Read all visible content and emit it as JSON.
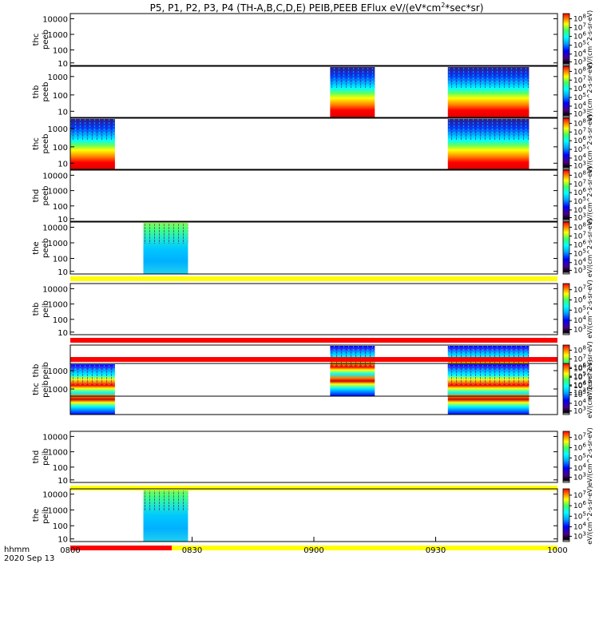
{
  "title": "P5, P1, P2, P3, P4 (TH-A,B,C,D,E) PEIB,PEEB EFlux eV/(eV*cm^2*sec*sr)",
  "title_parts": {
    "before": "P5, P1, P2, P3, P4 (TH-A,B,C,D,E) PEIB,PEEB EFlux eV/(eV*cm",
    "sup": "2",
    "after": "*sec*sr)"
  },
  "colors": {
    "axis": "#000000",
    "flag_yellow": "#ffff00",
    "flag_red": "#ff0000",
    "colormap": [
      "#4b0082",
      "#0000ff",
      "#0080ff",
      "#00ffff",
      "#40ff80",
      "#ffff00",
      "#ff8000",
      "#ff0000"
    ]
  },
  "colorbar_unit_label": "eV/(cm^2-s-sr-eV)",
  "bottom_colorbar_label": "[eV/(cm2-s-sr-eV)]",
  "time_axis": {
    "label_1": "hhmm",
    "label_2": "2020 Sep 13",
    "ticks": [
      "0800",
      "0830",
      "0900",
      "0930",
      "1000"
    ]
  },
  "chart_data": {
    "type": "heatmap",
    "x_range_minutes": [
      0,
      120
    ],
    "panels": [
      {
        "id": "thc-peeb-top",
        "label_1": "thc",
        "label_2": "peeb",
        "yticks": [
          "10000",
          "1000",
          "100",
          "10"
        ],
        "cbar_ticks": [
          "10^8",
          "10^7",
          "10^6",
          "10^5",
          "10^4",
          "10^3"
        ],
        "blocks": []
      },
      {
        "id": "thb-peeb",
        "label_1": "thb",
        "label_2": "peeb",
        "yticks": [
          "1000",
          "100",
          "10"
        ],
        "cbar_ticks": [
          "10^8",
          "10^7",
          "10^6",
          "10^5",
          "10^4",
          "10^3"
        ],
        "blocks": [
          {
            "start_min": 64,
            "end_min": 75,
            "style": "electron"
          },
          {
            "start_min": 93,
            "end_min": 113,
            "style": "electron"
          }
        ]
      },
      {
        "id": "thc-peeb",
        "label_1": "thc",
        "label_2": "peeb",
        "yticks": [
          "1000",
          "100",
          "10"
        ],
        "cbar_ticks": [
          "10^8",
          "10^7",
          "10^6",
          "10^5",
          "10^4",
          "10^3"
        ],
        "blocks": [
          {
            "start_min": 0,
            "end_min": 11,
            "style": "electron"
          },
          {
            "start_min": 93,
            "end_min": 113,
            "style": "electron"
          }
        ]
      },
      {
        "id": "thd-peeb",
        "label_1": "thd",
        "label_2": "peeb",
        "yticks": [
          "10000",
          "1000",
          "100",
          "10"
        ],
        "cbar_ticks": [
          "10^8",
          "10^7",
          "10^6",
          "10^5",
          "10^4",
          "10^3"
        ],
        "blocks": []
      },
      {
        "id": "the-peeb",
        "label_1": "the",
        "label_2": "peeb",
        "yticks": [
          "10000",
          "1000",
          "100",
          "10"
        ],
        "cbar_ticks": [
          "10^8",
          "10^7",
          "10^6",
          "10^5",
          "10^4",
          "10^3"
        ],
        "blocks": [
          {
            "start_min": 18,
            "end_min": 29,
            "style": "low"
          }
        ]
      },
      {
        "id": "thb-peib-top",
        "label_1": "thb",
        "label_2": "peib",
        "yticks": [
          "10000",
          "1000",
          "100",
          "10"
        ],
        "cbar_ticks": [
          "10^7",
          "10^6",
          "10^5",
          "10^4",
          "10^3"
        ],
        "blocks": []
      },
      {
        "id": "thb-peib",
        "label_1": "thb",
        "label_2": "peib",
        "yticks": [
          "1000"
        ],
        "cbar_ticks": [
          "10^8",
          "10^7",
          "10^6",
          "10^5",
          "10^4",
          "10^3"
        ],
        "blocks": [
          {
            "start_min": 64,
            "end_min": 75,
            "style": "ion"
          },
          {
            "start_min": 93,
            "end_min": 113,
            "style": "ion"
          }
        ]
      },
      {
        "id": "thc-peib",
        "label_1": "thc",
        "label_2": "peib",
        "yticks": [
          "1000"
        ],
        "cbar_ticks": [
          "10^8",
          "10^7",
          "10^6",
          "10^5",
          "10^4",
          "10^3"
        ],
        "blocks": [
          {
            "start_min": 0,
            "end_min": 11,
            "style": "ion"
          },
          {
            "start_min": 93,
            "end_min": 113,
            "style": "ion"
          }
        ]
      },
      {
        "id": "thd-peib",
        "label_1": "thd",
        "label_2": "peib",
        "yticks": [
          "10000",
          "1000",
          "100",
          "10"
        ],
        "cbar_ticks": [
          "10^7",
          "10^6",
          "10^5",
          "10^4",
          "10^3"
        ],
        "blocks": []
      },
      {
        "id": "the-peib",
        "label_1": "the",
        "label_2": "peib",
        "yticks": [
          "10000",
          "1000",
          "100",
          "10"
        ],
        "cbar_ticks": [
          "10^7",
          "10^6",
          "10^5",
          "10^4",
          "10^3"
        ],
        "blocks": [
          {
            "start_min": 18,
            "end_min": 29,
            "style": "low"
          }
        ]
      }
    ],
    "flag_bars": [
      {
        "after_panel": "the-peeb",
        "segments": [
          {
            "start_min": 0,
            "end_min": 120,
            "color": "yellow"
          }
        ]
      },
      {
        "after_panel": "thb-peib-top",
        "segments": [
          {
            "start_min": 0,
            "end_min": 120,
            "color": "red"
          }
        ]
      },
      {
        "after_panel": "thb-peib",
        "segments": [
          {
            "start_min": 0,
            "end_min": 120,
            "color": "red"
          }
        ]
      },
      {
        "after_panel": "thc-peib",
        "segments": [
          {
            "start_min": 0,
            "end_min": 120,
            "color": "yellow"
          }
        ]
      },
      {
        "after_panel": "thd-peib",
        "segments": [
          {
            "start_min": 0,
            "end_min": 25,
            "color": "red"
          },
          {
            "start_min": 25,
            "end_min": 120,
            "color": "yellow"
          }
        ]
      }
    ]
  }
}
